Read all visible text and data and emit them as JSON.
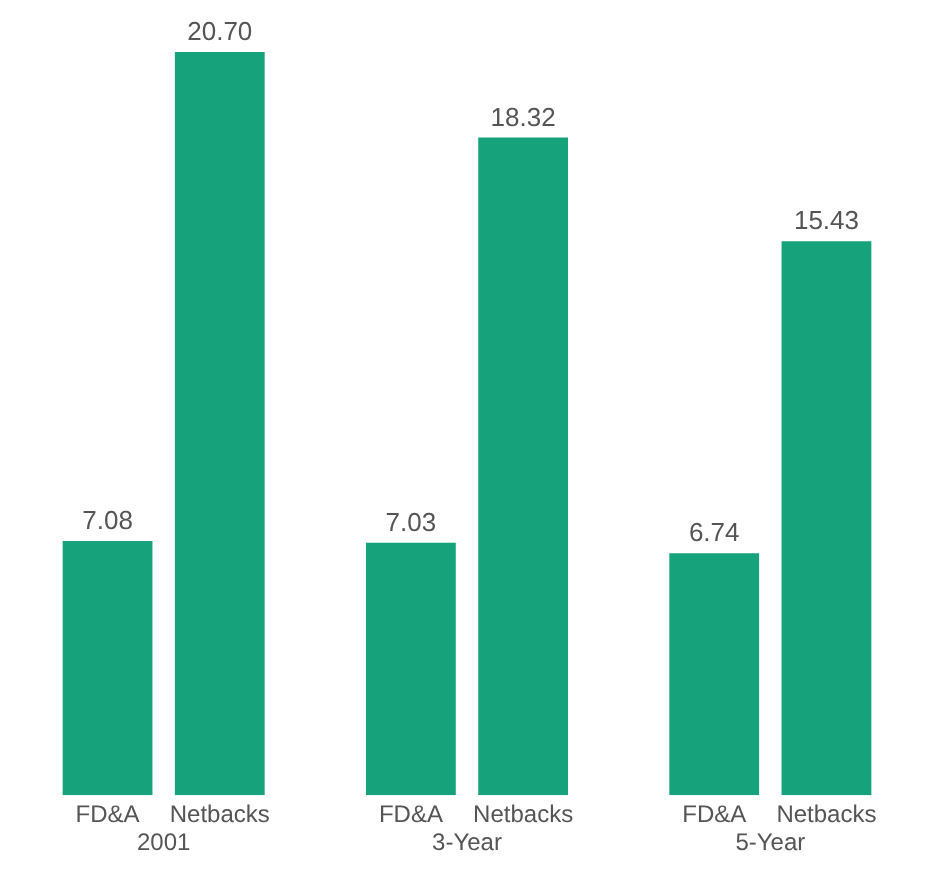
{
  "chart_data": {
    "type": "bar",
    "categories": [
      "2001",
      "3-Year",
      "5-Year"
    ],
    "series": [
      {
        "name": "FD&A",
        "color": "#16a27a",
        "values": [
          7.08,
          7.03,
          6.74
        ],
        "value_labels": [
          "7.08",
          "7.03",
          "6.74"
        ]
      },
      {
        "name": "Netbacks",
        "color": "#16a27a",
        "values": [
          20.7,
          18.32,
          15.43
        ],
        "value_labels": [
          "20.70",
          "18.32",
          "15.43"
        ]
      }
    ],
    "grid": false,
    "legend": false,
    "tick_labels": "x"
  }
}
